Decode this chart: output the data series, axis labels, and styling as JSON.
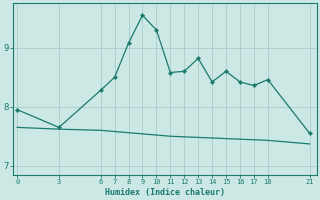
{
  "xlabel": "Humidex (Indice chaleur)",
  "bg_color": "#cce8e4",
  "line_color": "#1a7a6e",
  "grid_color": "#aacccc",
  "line1_x": [
    0,
    3,
    6,
    7,
    8,
    9,
    10,
    11,
    12,
    13,
    14,
    15,
    16,
    17,
    18,
    21
  ],
  "line1_y": [
    7.95,
    7.65,
    8.28,
    8.5,
    9.08,
    9.55,
    9.3,
    8.58,
    8.6,
    8.82,
    8.42,
    8.6,
    8.42,
    8.36,
    8.46,
    7.55
  ],
  "line2_x": [
    0,
    3,
    6,
    7,
    8,
    9,
    10,
    11,
    12,
    13,
    14,
    15,
    16,
    17,
    18,
    21
  ],
  "line2_y": [
    7.65,
    7.62,
    7.6,
    7.58,
    7.56,
    7.54,
    7.52,
    7.5,
    7.49,
    7.48,
    7.47,
    7.46,
    7.45,
    7.44,
    7.43,
    7.37
  ],
  "xticks": [
    0,
    3,
    6,
    7,
    8,
    9,
    10,
    11,
    12,
    13,
    14,
    15,
    16,
    17,
    18,
    21
  ],
  "yticks": [
    7,
    8,
    9
  ],
  "ylim": [
    6.85,
    9.75
  ],
  "xlim": [
    -0.3,
    21.5
  ]
}
